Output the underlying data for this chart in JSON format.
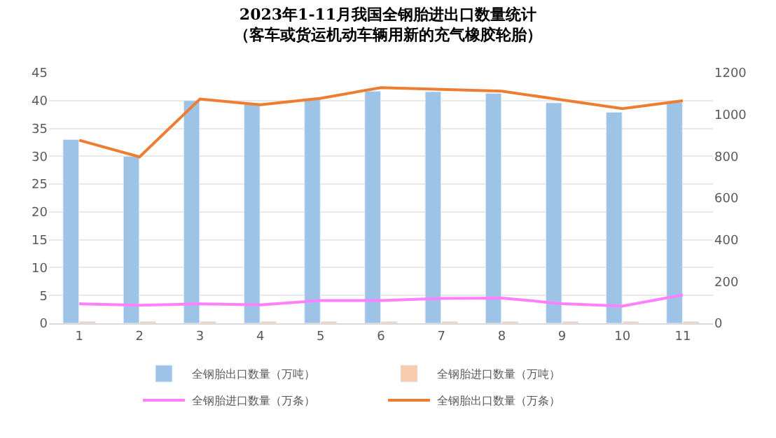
{
  "chart_data": {
    "type": "bar",
    "title": "2023年1-11月我国全钢胎进出口数量统计",
    "subtitle": "（客车或货运机动车辆用新的充气橡胶轮胎）",
    "categories": [
      "1",
      "2",
      "3",
      "4",
      "5",
      "6",
      "7",
      "8",
      "9",
      "10",
      "11"
    ],
    "series": [
      {
        "name": "全钢胎出口数量（万吨）",
        "color": "#9dc3e6",
        "values": [
          33,
          30,
          40,
          39.5,
          40.3,
          41.7,
          41.6,
          41.3,
          39.6,
          37.9,
          39.7
        ]
      },
      {
        "name": "全钢胎进口数量（万吨）",
        "color": "#f8cbad",
        "values": [
          0.3,
          0.3,
          0.3,
          0.3,
          0.3,
          0.3,
          0.3,
          0.3,
          0.3,
          0.3,
          0.3
        ]
      },
      {
        "name": "全钢胎进口数量（万条）",
        "color": "#ff80ff",
        "type": "line",
        "axis": "y2",
        "values": [
          93,
          86,
          93,
          88,
          109,
          109,
          119,
          121,
          94,
          82,
          136
        ]
      },
      {
        "name": "全钢胎出口数量（万条）",
        "color": "#ed7d31",
        "type": "line",
        "axis": "y2",
        "values": [
          877,
          797,
          1074,
          1047,
          1078,
          1129,
          1120,
          1112,
          1070,
          1028,
          1066
        ]
      }
    ],
    "ylim": [
      0,
      45
    ],
    "yticks": [
      0,
      5,
      10,
      15,
      20,
      25,
      30,
      35,
      40,
      45
    ],
    "y2lim": [
      0,
      1200
    ],
    "y2ticks": [
      0,
      200,
      400,
      600,
      800,
      1000,
      1200
    ],
    "grid": "y",
    "legend": "bottom",
    "marker": "none",
    "line_style": "solid"
  }
}
